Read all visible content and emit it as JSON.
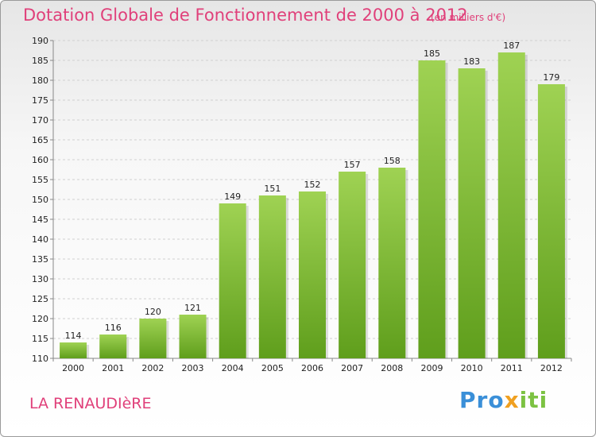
{
  "header": {
    "title": "Dotation Globale de Fonctionnement de 2000 à 2012",
    "unit": "(en milliers d'€)"
  },
  "footer": {
    "commune": "LA RENAUDIèRE",
    "logo": [
      "Pro",
      "x",
      "iti"
    ]
  },
  "colors": {
    "accent": "#e0407a",
    "bar_top": "#9fd253",
    "bar_bottom": "#5f9e1c",
    "grid": "#d0d0d0"
  },
  "chart_data": {
    "type": "bar",
    "categories": [
      "2000",
      "2001",
      "2002",
      "2003",
      "2004",
      "2005",
      "2006",
      "2007",
      "2008",
      "2009",
      "2010",
      "2011",
      "2012"
    ],
    "values": [
      114,
      116,
      120,
      121,
      149,
      151,
      152,
      157,
      158,
      185,
      183,
      187,
      179
    ],
    "yticks": [
      110,
      115,
      120,
      125,
      130,
      135,
      140,
      145,
      150,
      155,
      160,
      165,
      170,
      175,
      180,
      185,
      190
    ],
    "ylim": [
      110,
      190
    ],
    "grid": true,
    "xlabel": "",
    "ylabel": ""
  }
}
